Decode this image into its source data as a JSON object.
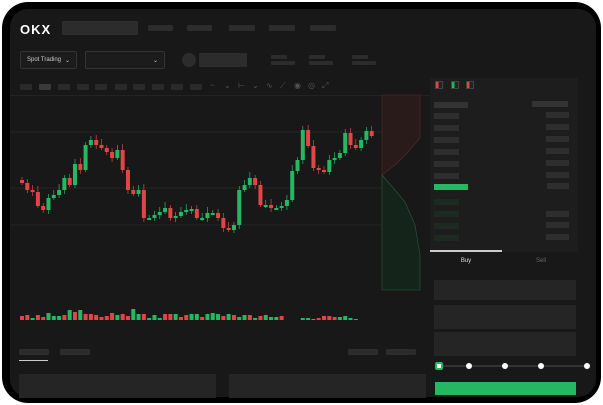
{
  "header": {
    "logo": "OKX",
    "nav_items": [
      "",
      "",
      "",
      ""
    ]
  },
  "toolbar": {
    "market_dropdown_label": "Spot Trading",
    "pair_dropdown_label": ""
  },
  "order_form": {
    "tabs": [
      "Buy",
      "Sell"
    ],
    "active_tab": "Buy",
    "leverage_slider_value": 0
  },
  "colors": {
    "up": "#25b862",
    "down": "#e04646",
    "background": "#181818",
    "accent": "#25b862"
  },
  "chart_data": {
    "type": "candlestick",
    "closes": [
      57,
      50,
      48,
      34,
      30,
      42,
      45,
      50,
      62,
      55,
      76,
      70,
      95,
      100,
      95,
      92,
      88,
      82,
      90,
      70,
      50,
      46,
      50,
      22,
      22,
      25,
      28,
      32,
      22,
      24,
      28,
      30,
      31,
      22,
      22,
      27,
      27,
      22,
      12,
      10,
      15,
      50,
      55,
      62,
      55,
      35,
      35,
      32,
      32,
      34,
      40,
      69,
      80,
      110,
      94,
      72,
      70,
      68,
      80,
      82,
      87,
      107,
      95,
      92,
      100,
      109,
      104
    ],
    "volumes": [
      8,
      9,
      6,
      9,
      7,
      11,
      8,
      8,
      9,
      14,
      12,
      14,
      10,
      10,
      9,
      7,
      8,
      11,
      9,
      10,
      8,
      15,
      10,
      10,
      6,
      9,
      6,
      10,
      10,
      10,
      7,
      9,
      10,
      10,
      7,
      10,
      11,
      10,
      8,
      10,
      9,
      7,
      9,
      9,
      6,
      8,
      9,
      7,
      7,
      8,
      3,
      2,
      4,
      6,
      6,
      5,
      6,
      8,
      8,
      7,
      7,
      8,
      6,
      5,
      3,
      2,
      4
    ],
    "volume_colors": [
      "down",
      "down",
      "up",
      "down",
      "down",
      "up",
      "up",
      "up",
      "down",
      "up",
      "down",
      "up",
      "down",
      "down",
      "down",
      "down",
      "down",
      "down",
      "up",
      "down",
      "down",
      "up",
      "up",
      "down",
      "up",
      "up",
      "up",
      "down",
      "down",
      "up",
      "down",
      "down",
      "up",
      "up",
      "down",
      "up",
      "up",
      "up",
      "down",
      "up",
      "down",
      "up",
      "up",
      "down",
      "up",
      "down",
      "up",
      "up",
      "up",
      "down",
      "down",
      "up",
      "down",
      "up",
      "up",
      "up",
      "down",
      "down",
      "down",
      "down",
      "up",
      "up",
      "up",
      "up",
      "up",
      "down",
      "up"
    ]
  }
}
